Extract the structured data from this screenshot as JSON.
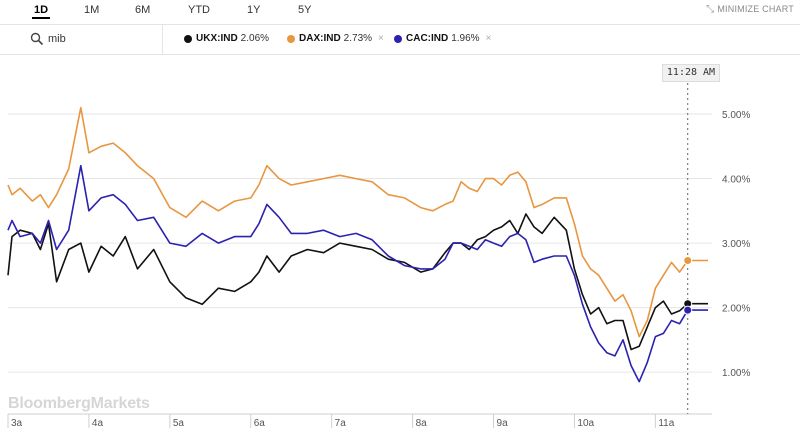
{
  "range_tabs": [
    {
      "label": "1D",
      "active": true
    },
    {
      "label": "1M",
      "active": false
    },
    {
      "label": "6M",
      "active": false
    },
    {
      "label": "YTD",
      "active": false
    },
    {
      "label": "1Y",
      "active": false
    },
    {
      "label": "5Y",
      "active": false
    }
  ],
  "minimize_label": "MINIMIZE CHART",
  "search": {
    "value": "mib",
    "icon": "search-icon"
  },
  "legend": [
    {
      "symbol": "UKX:IND",
      "change": "2.06%",
      "color": "#111111",
      "closable": false
    },
    {
      "symbol": "DAX:IND",
      "change": "2.73%",
      "color": "#e8963f",
      "closable": true
    },
    {
      "symbol": "CAC:IND",
      "change": "1.96%",
      "color": "#2b22b0",
      "closable": true
    }
  ],
  "crosshair_time": "11:28 AM",
  "brand": "BloombergMarkets",
  "chart_data": {
    "type": "line",
    "x_tick_labels": [
      "3a",
      "4a",
      "5a",
      "6a",
      "7a",
      "8a",
      "9a",
      "10a",
      "11a"
    ],
    "y_tick_labels": [
      "1.00%",
      "2.00%",
      "3.00%",
      "4.00%",
      "5.00%"
    ],
    "ylim": [
      0.35,
      5.9
    ],
    "xlim": [
      3.0,
      11.7
    ],
    "y_grid": true,
    "cursor_x": 11.4,
    "series": [
      {
        "name": "UKX:IND",
        "color": "#111111",
        "end_marker": true,
        "x": [
          3.0,
          3.05,
          3.15,
          3.3,
          3.4,
          3.5,
          3.6,
          3.75,
          3.9,
          4.0,
          4.15,
          4.3,
          4.45,
          4.6,
          4.8,
          5.0,
          5.2,
          5.4,
          5.6,
          5.8,
          6.0,
          6.1,
          6.2,
          6.35,
          6.5,
          6.7,
          6.9,
          7.1,
          7.3,
          7.5,
          7.7,
          7.9,
          8.1,
          8.25,
          8.4,
          8.5,
          8.6,
          8.7,
          8.8,
          8.9,
          9.0,
          9.1,
          9.2,
          9.3,
          9.4,
          9.5,
          9.6,
          9.75,
          9.9,
          10.0,
          10.1,
          10.2,
          10.3,
          10.4,
          10.5,
          10.6,
          10.7,
          10.8,
          10.9,
          11.0,
          11.1,
          11.2,
          11.3,
          11.4
        ],
        "y": [
          2.5,
          3.1,
          3.2,
          3.15,
          2.9,
          3.3,
          2.4,
          2.9,
          3.0,
          2.55,
          2.95,
          2.8,
          3.1,
          2.6,
          2.9,
          2.4,
          2.15,
          2.05,
          2.3,
          2.25,
          2.4,
          2.55,
          2.8,
          2.55,
          2.8,
          2.9,
          2.85,
          3.0,
          2.95,
          2.9,
          2.75,
          2.7,
          2.55,
          2.6,
          2.85,
          3.0,
          3.0,
          2.9,
          3.05,
          3.1,
          3.2,
          3.25,
          3.35,
          3.15,
          3.45,
          3.25,
          3.15,
          3.4,
          3.2,
          2.6,
          2.2,
          1.9,
          2.0,
          1.75,
          1.8,
          1.8,
          1.35,
          1.4,
          1.7,
          2.0,
          2.1,
          1.9,
          1.95,
          2.06
        ]
      },
      {
        "name": "DAX:IND",
        "color": "#e8963f",
        "end_marker": true,
        "x": [
          3.0,
          3.05,
          3.15,
          3.3,
          3.4,
          3.5,
          3.6,
          3.75,
          3.9,
          4.0,
          4.15,
          4.3,
          4.45,
          4.6,
          4.8,
          5.0,
          5.2,
          5.4,
          5.6,
          5.8,
          6.0,
          6.1,
          6.2,
          6.35,
          6.5,
          6.7,
          6.9,
          7.1,
          7.3,
          7.5,
          7.7,
          7.9,
          8.1,
          8.25,
          8.4,
          8.5,
          8.6,
          8.7,
          8.8,
          8.9,
          9.0,
          9.1,
          9.2,
          9.3,
          9.4,
          9.5,
          9.6,
          9.75,
          9.9,
          10.0,
          10.1,
          10.2,
          10.3,
          10.4,
          10.5,
          10.6,
          10.7,
          10.8,
          10.9,
          11.0,
          11.1,
          11.2,
          11.3,
          11.4
        ],
        "y": [
          3.9,
          3.75,
          3.85,
          3.65,
          3.75,
          3.55,
          3.75,
          4.15,
          5.1,
          4.4,
          4.5,
          4.55,
          4.4,
          4.2,
          4.0,
          3.55,
          3.4,
          3.65,
          3.5,
          3.65,
          3.7,
          3.9,
          4.2,
          4.0,
          3.9,
          3.95,
          4.0,
          4.05,
          4.0,
          3.95,
          3.75,
          3.7,
          3.55,
          3.5,
          3.6,
          3.65,
          3.95,
          3.85,
          3.8,
          4.0,
          4.0,
          3.9,
          4.05,
          4.1,
          3.95,
          3.55,
          3.6,
          3.7,
          3.7,
          3.3,
          2.8,
          2.6,
          2.5,
          2.3,
          2.1,
          2.2,
          1.95,
          1.55,
          1.8,
          2.3,
          2.5,
          2.7,
          2.55,
          2.73
        ]
      },
      {
        "name": "CAC:IND",
        "color": "#2b22b0",
        "end_marker": true,
        "x": [
          3.0,
          3.05,
          3.15,
          3.3,
          3.4,
          3.5,
          3.6,
          3.75,
          3.9,
          4.0,
          4.15,
          4.3,
          4.45,
          4.6,
          4.8,
          5.0,
          5.2,
          5.4,
          5.6,
          5.8,
          6.0,
          6.1,
          6.2,
          6.35,
          6.5,
          6.7,
          6.9,
          7.1,
          7.3,
          7.5,
          7.7,
          7.9,
          8.1,
          8.25,
          8.4,
          8.5,
          8.6,
          8.7,
          8.8,
          8.9,
          9.0,
          9.1,
          9.2,
          9.3,
          9.4,
          9.5,
          9.6,
          9.75,
          9.9,
          10.0,
          10.1,
          10.2,
          10.3,
          10.4,
          10.5,
          10.6,
          10.7,
          10.8,
          10.9,
          11.0,
          11.1,
          11.2,
          11.3,
          11.4
        ],
        "y": [
          3.2,
          3.35,
          3.1,
          3.15,
          3.0,
          3.35,
          2.9,
          3.2,
          4.2,
          3.5,
          3.7,
          3.75,
          3.6,
          3.35,
          3.4,
          3.0,
          2.95,
          3.15,
          3.0,
          3.1,
          3.1,
          3.3,
          3.6,
          3.4,
          3.15,
          3.15,
          3.2,
          3.1,
          3.15,
          3.05,
          2.8,
          2.65,
          2.6,
          2.6,
          2.75,
          3.0,
          3.0,
          2.95,
          2.9,
          3.05,
          3.0,
          2.95,
          3.1,
          3.15,
          3.05,
          2.7,
          2.75,
          2.8,
          2.8,
          2.5,
          2.05,
          1.7,
          1.45,
          1.3,
          1.25,
          1.5,
          1.1,
          0.85,
          1.15,
          1.55,
          1.6,
          1.8,
          1.75,
          1.96
        ]
      }
    ]
  }
}
